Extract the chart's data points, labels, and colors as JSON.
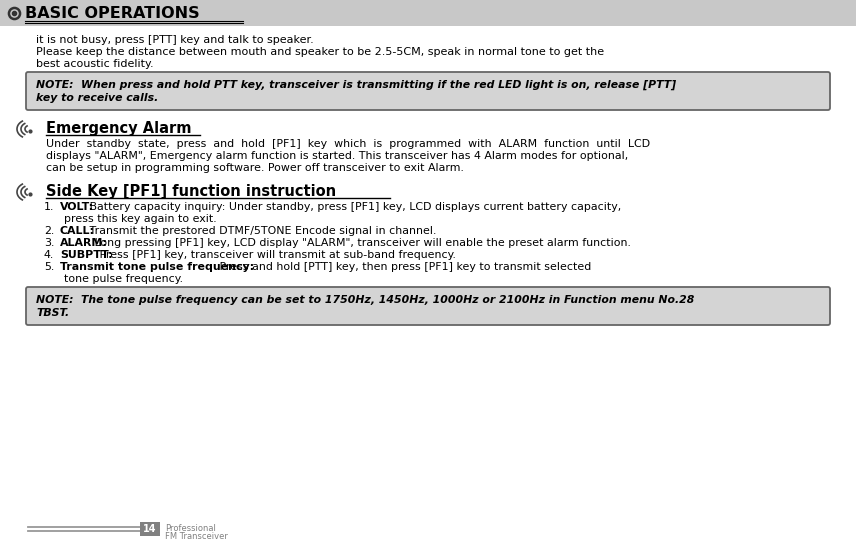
{
  "bg_color": "#ffffff",
  "header_bg": "#c8c8c8",
  "header_text": "BASIC OPERATIONS",
  "header_text_color": "#000000",
  "note_bg": "#d4d4d4",
  "note_border": "#666666",
  "body_text_color": "#000000",
  "gray_text_color": "#808080",
  "page_num_bg": "#808080",
  "intro_lines": [
    "it is not busy, press [PTT] key and talk to speaker.",
    "Please keep the distance between mouth and speaker to be 2.5-5CM, speak in normal tone to get the",
    "best acoustic fidelity."
  ],
  "note1_line1": "NOTE:  When press and hold PTT key, transceiver is transmitting if the red LED light is on, release [PTT]",
  "note1_line2": "key to receive calls.",
  "section1_title": "Emergency Alarm",
  "sec1_body_lines": [
    "Under  standby  state,  press  and  hold  [PF1]  key  which  is  programmed  with  ALARM  function  until  LCD",
    "displays \"ALARM\", Emergency alarm function is started. This transceiver has 4 Alarm modes for optional,",
    "can be setup in programming software. Power off transceiver to exit Alarm."
  ],
  "section2_title": "Side Key [PF1] function instruction",
  "list_items": [
    {
      "num": "1.",
      "bold": "VOLT:",
      "rest": " Battery capacity inquiry: Under standby, press [PF1] key, LCD displays current battery capacity,",
      "cont": "press this key again to exit."
    },
    {
      "num": "2.",
      "bold": "CALL:",
      "rest": " Transmit the prestored DTMF/5TONE Encode signal in channel.",
      "cont": ""
    },
    {
      "num": "3.",
      "bold": "ALARM:",
      "rest": " Long pressing [PF1] key, LCD display \"ALARM\", transceiver will enable the preset alarm function.",
      "cont": ""
    },
    {
      "num": "4.",
      "bold": "SUBPTT:",
      "rest": " Press [PF1] key, transceiver will transmit at sub-band frequency.",
      "cont": ""
    },
    {
      "num": "5.",
      "bold": "Transmit tone pulse frequency:",
      "rest": " Press and hold [PTT] key, then press [PF1] key to transmit selected",
      "cont": "tone pulse frequency."
    }
  ],
  "note2_line1": "NOTE:  The tone pulse frequency can be set to 1750Hz, 1450Hz, 1000Hz or 2100Hz in Function menu No.28",
  "note2_line2": "TBST.",
  "footer_page": "14",
  "footer_line1": "Professional",
  "footer_line2": "FM Transceiver",
  "icon_color": "#444444",
  "bullet_color": "#333333"
}
